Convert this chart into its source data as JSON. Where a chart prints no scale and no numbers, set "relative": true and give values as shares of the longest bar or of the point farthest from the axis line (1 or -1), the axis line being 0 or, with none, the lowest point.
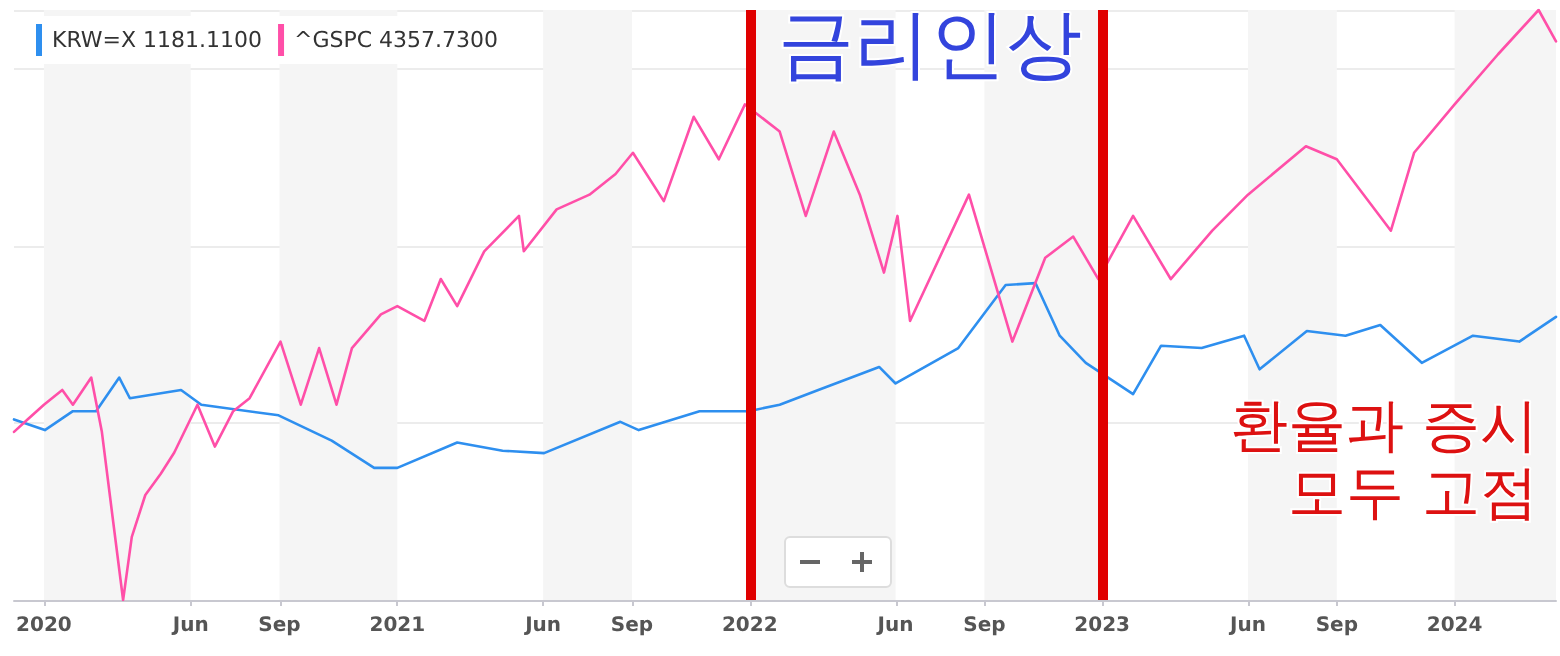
{
  "chart_data": {
    "type": "line",
    "relative": true,
    "xlim": [
      "2019-12-01",
      "2024-04-15"
    ],
    "xticks": [
      {
        "value": "2020-01",
        "label": "2020"
      },
      {
        "value": "2020-06",
        "label": "Jun"
      },
      {
        "value": "2020-09",
        "label": "Sep"
      },
      {
        "value": "2021-01",
        "label": "2021"
      },
      {
        "value": "2021-06",
        "label": "Jun"
      },
      {
        "value": "2021-09",
        "label": "Sep"
      },
      {
        "value": "2022-01",
        "label": "2022"
      },
      {
        "value": "2022-06",
        "label": "Jun"
      },
      {
        "value": "2022-09",
        "label": "Sep"
      },
      {
        "value": "2023-01",
        "label": "2023"
      },
      {
        "value": "2023-06",
        "label": "Jun"
      },
      {
        "value": "2023-09",
        "label": "Sep"
      },
      {
        "value": "2024-01",
        "label": "2024"
      }
    ],
    "legend": "top left",
    "grid": "y",
    "marker": "none",
    "line_style": "solid",
    "annotations": [
      "금리인상",
      "환율과 증시\n모두 고점"
    ],
    "ref_lines": [
      {
        "axis": "x",
        "value": "2022-01-01",
        "color": "#e00000"
      },
      {
        "axis": "x",
        "value": "2023-01-01",
        "color": "#e00000"
      }
    ],
    "bands": [
      {
        "axis": "x",
        "from": "2020-01-01",
        "to": "2020-06-01",
        "color": "#f5f5f5"
      },
      {
        "axis": "x",
        "from": "2020-09-01",
        "to": "2021-01-01",
        "color": "#f5f5f5"
      },
      {
        "axis": "x",
        "from": "2021-06-01",
        "to": "2021-09-01",
        "color": "#f5f5f5"
      },
      {
        "axis": "x",
        "from": "2022-01-01",
        "to": "2022-06-01",
        "color": "#f5f5f5"
      },
      {
        "axis": "x",
        "from": "2022-09-01",
        "to": "2023-01-01",
        "color": "#f5f5f5"
      },
      {
        "axis": "x",
        "from": "2023-06-01",
        "to": "2023-09-01",
        "color": "#f5f5f5"
      },
      {
        "axis": "x",
        "from": "2024-01-01",
        "to": "2024-04-15",
        "color": "#f5f5f5"
      }
    ],
    "series": [
      {
        "name": "KRW=X 1181.1100",
        "color": "#2e8fef",
        "x": [
          "2019-12-01",
          "2020-01-02",
          "2020-01-31",
          "2020-02-24",
          "2020-03-19",
          "2020-03-30",
          "2020-05-22",
          "2020-06-12",
          "2020-08-31",
          "2020-10-25",
          "2020-12-08",
          "2021-01-01",
          "2021-03-04",
          "2021-04-20",
          "2021-06-02",
          "2021-08-20",
          "2021-09-08",
          "2021-11-10",
          "2021-12-31",
          "2022-02-01",
          "2022-03-13",
          "2022-05-15",
          "2022-06-01",
          "2022-08-05",
          "2022-09-23",
          "2022-10-24",
          "2022-11-18",
          "2022-12-15",
          "2023-02-02",
          "2023-03-03",
          "2023-04-14",
          "2023-05-28",
          "2023-06-13",
          "2023-08-01",
          "2023-09-10",
          "2023-10-16",
          "2023-11-28",
          "2024-01-20",
          "2024-03-08",
          "2024-04-15"
        ],
        "values": [
          0.306,
          0.288,
          0.32,
          0.32,
          0.377,
          0.342,
          0.356,
          0.331,
          0.313,
          0.27,
          0.224,
          0.224,
          0.267,
          0.253,
          0.249,
          0.302,
          0.288,
          0.32,
          0.32,
          0.331,
          0.356,
          0.395,
          0.367,
          0.427,
          0.534,
          0.537,
          0.448,
          0.402,
          0.349,
          0.431,
          0.427,
          0.448,
          0.391,
          0.456,
          0.448,
          0.466,
          0.402,
          0.448,
          0.438,
          0.48
        ]
      },
      {
        "name": "^GSPC 4357.7300",
        "color": "#ff4fa8",
        "x": [
          "2019-12-01",
          "2019-12-15",
          "2020-01-01",
          "2020-01-20",
          "2020-01-31",
          "2020-02-19",
          "2020-03-01",
          "2020-03-12",
          "2020-03-23",
          "2020-04-01",
          "2020-04-15",
          "2020-05-01",
          "2020-05-15",
          "2020-06-08",
          "2020-06-26",
          "2020-07-15",
          "2020-08-01",
          "2020-09-02",
          "2020-09-23",
          "2020-10-12",
          "2020-10-30",
          "2020-11-15",
          "2020-12-15",
          "2021-01-01",
          "2021-01-29",
          "2021-02-15",
          "2021-03-04",
          "2021-04-01",
          "2021-05-07",
          "2021-05-12",
          "2021-06-15",
          "2021-07-19",
          "2021-08-15",
          "2021-09-02",
          "2021-10-04",
          "2021-11-04",
          "2021-11-30",
          "2021-12-27",
          "2022-02-01",
          "2022-02-28",
          "2022-03-29",
          "2022-04-25",
          "2022-05-20",
          "2022-06-03",
          "2022-06-16",
          "2022-08-16",
          "2022-09-30",
          "2022-11-03",
          "2022-12-02",
          "2022-12-28",
          "2023-02-02",
          "2023-03-13",
          "2023-04-25",
          "2023-06-01",
          "2023-07-31",
          "2023-09-01",
          "2023-10-27",
          "2023-11-20",
          "2024-01-01",
          "2024-02-15",
          "2024-03-28",
          "2024-04-15"
        ],
        "values": [
          0.285,
          0.306,
          0.331,
          0.356,
          0.331,
          0.377,
          0.285,
          0.142,
          0,
          0.107,
          0.178,
          0.214,
          0.25,
          0.331,
          0.26,
          0.32,
          0.342,
          0.438,
          0.331,
          0.427,
          0.331,
          0.427,
          0.484,
          0.498,
          0.473,
          0.544,
          0.498,
          0.591,
          0.651,
          0.591,
          0.662,
          0.687,
          0.722,
          0.758,
          0.676,
          0.819,
          0.747,
          0.84,
          0.794,
          0.651,
          0.794,
          0.687,
          0.555,
          0.651,
          0.473,
          0.687,
          0.438,
          0.58,
          0.616,
          0.544,
          0.651,
          0.544,
          0.626,
          0.687,
          0.769,
          0.747,
          0.626,
          0.758,
          0.84,
          0.925,
          1,
          0.947
        ]
      }
    ]
  }
}
